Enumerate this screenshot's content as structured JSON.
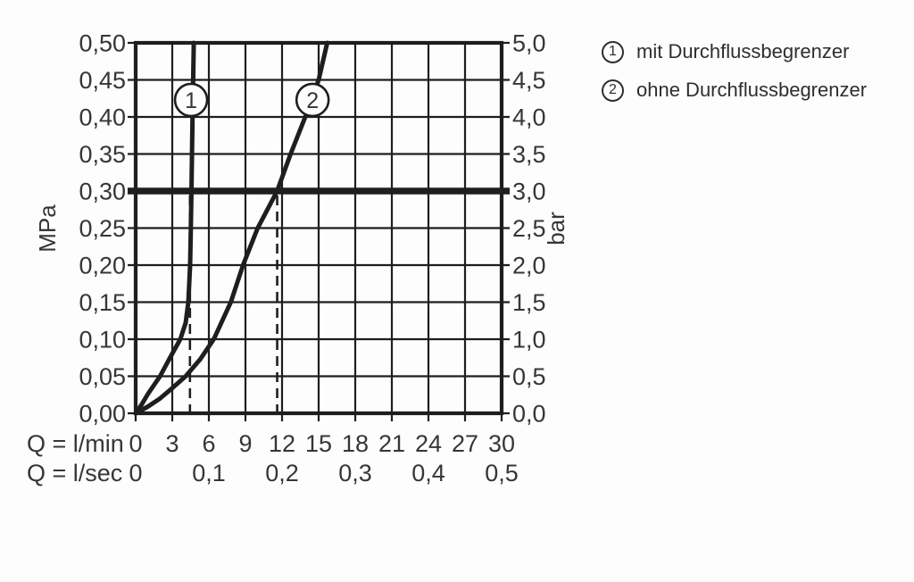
{
  "legend": {
    "items": [
      {
        "symbol": "1",
        "label": "mit Durchflussbegrenzer"
      },
      {
        "symbol": "2",
        "label": "ohne Durchflussbegrenzer"
      }
    ]
  },
  "chart_data": {
    "type": "line",
    "title": "",
    "grid": true,
    "x_axis": {
      "row1_label": "Q = l/min",
      "row2_label": "Q = l/sec",
      "lmin_ticks": [
        "0",
        "3",
        "6",
        "9",
        "12",
        "15",
        "18",
        "21",
        "24",
        "27",
        "30"
      ],
      "lmin_range": [
        0,
        30
      ],
      "lsec_ticks": [
        {
          "text": "0",
          "at_lmin": 0
        },
        {
          "text": "0,1",
          "at_lmin": 6
        },
        {
          "text": "0,2",
          "at_lmin": 12
        },
        {
          "text": "0,3",
          "at_lmin": 18
        },
        {
          "text": "0,4",
          "at_lmin": 24
        },
        {
          "text": "0,5",
          "at_lmin": 30
        }
      ]
    },
    "y_axis_left": {
      "label": "MPa",
      "range": [
        0,
        0.5
      ],
      "ticks_top_to_bottom": [
        "0,50",
        "0,45",
        "0,40",
        "0,35",
        "0,30",
        "0,25",
        "0,20",
        "0,15",
        "0,10",
        "0,05",
        "0,00"
      ]
    },
    "y_axis_right": {
      "label": "bar",
      "range": [
        0,
        5
      ],
      "ticks_top_to_bottom": [
        "5,0",
        "4,5",
        "4,0",
        "3,5",
        "3,0",
        "2,5",
        "2,0",
        "1,5",
        "1,0",
        "0,5",
        "0,0"
      ]
    },
    "reference_line": {
      "mpa": 0.3,
      "bar": 3.0
    },
    "series": [
      {
        "id": "1",
        "name": "mit Durchflussbegrenzer",
        "marker": {
          "text": "1",
          "q_lmin": 4.54,
          "p_mpa": 0.423
        },
        "drop_line_q_lmin": 4.45,
        "points_q_lmin_p_mpa": [
          [
            0,
            0
          ],
          [
            0.5,
            0.012
          ],
          [
            1.0,
            0.026
          ],
          [
            2.0,
            0.05
          ],
          [
            2.85,
            0.076
          ],
          [
            3.66,
            0.1
          ],
          [
            4.1,
            0.122
          ],
          [
            4.32,
            0.15
          ],
          [
            4.46,
            0.2
          ],
          [
            4.52,
            0.25
          ],
          [
            4.57,
            0.3
          ],
          [
            4.62,
            0.35
          ],
          [
            4.66,
            0.4
          ],
          [
            4.71,
            0.45
          ],
          [
            4.76,
            0.5
          ]
        ]
      },
      {
        "id": "2",
        "name": "ohne Durchflussbegrenzer",
        "marker": {
          "text": "2",
          "q_lmin": 14.5,
          "p_mpa": 0.423
        },
        "drop_line_q_lmin": 11.6,
        "points_q_lmin_p_mpa": [
          [
            0,
            0
          ],
          [
            1.0,
            0.009
          ],
          [
            2.0,
            0.02
          ],
          [
            3.0,
            0.034
          ],
          [
            4.1,
            0.05
          ],
          [
            5.3,
            0.073
          ],
          [
            6.4,
            0.1
          ],
          [
            7.8,
            0.15
          ],
          [
            8.8,
            0.2
          ],
          [
            10.0,
            0.25
          ],
          [
            11.6,
            0.3
          ],
          [
            12.7,
            0.35
          ],
          [
            13.9,
            0.4
          ],
          [
            15.0,
            0.45
          ],
          [
            15.7,
            0.5
          ]
        ]
      }
    ]
  }
}
